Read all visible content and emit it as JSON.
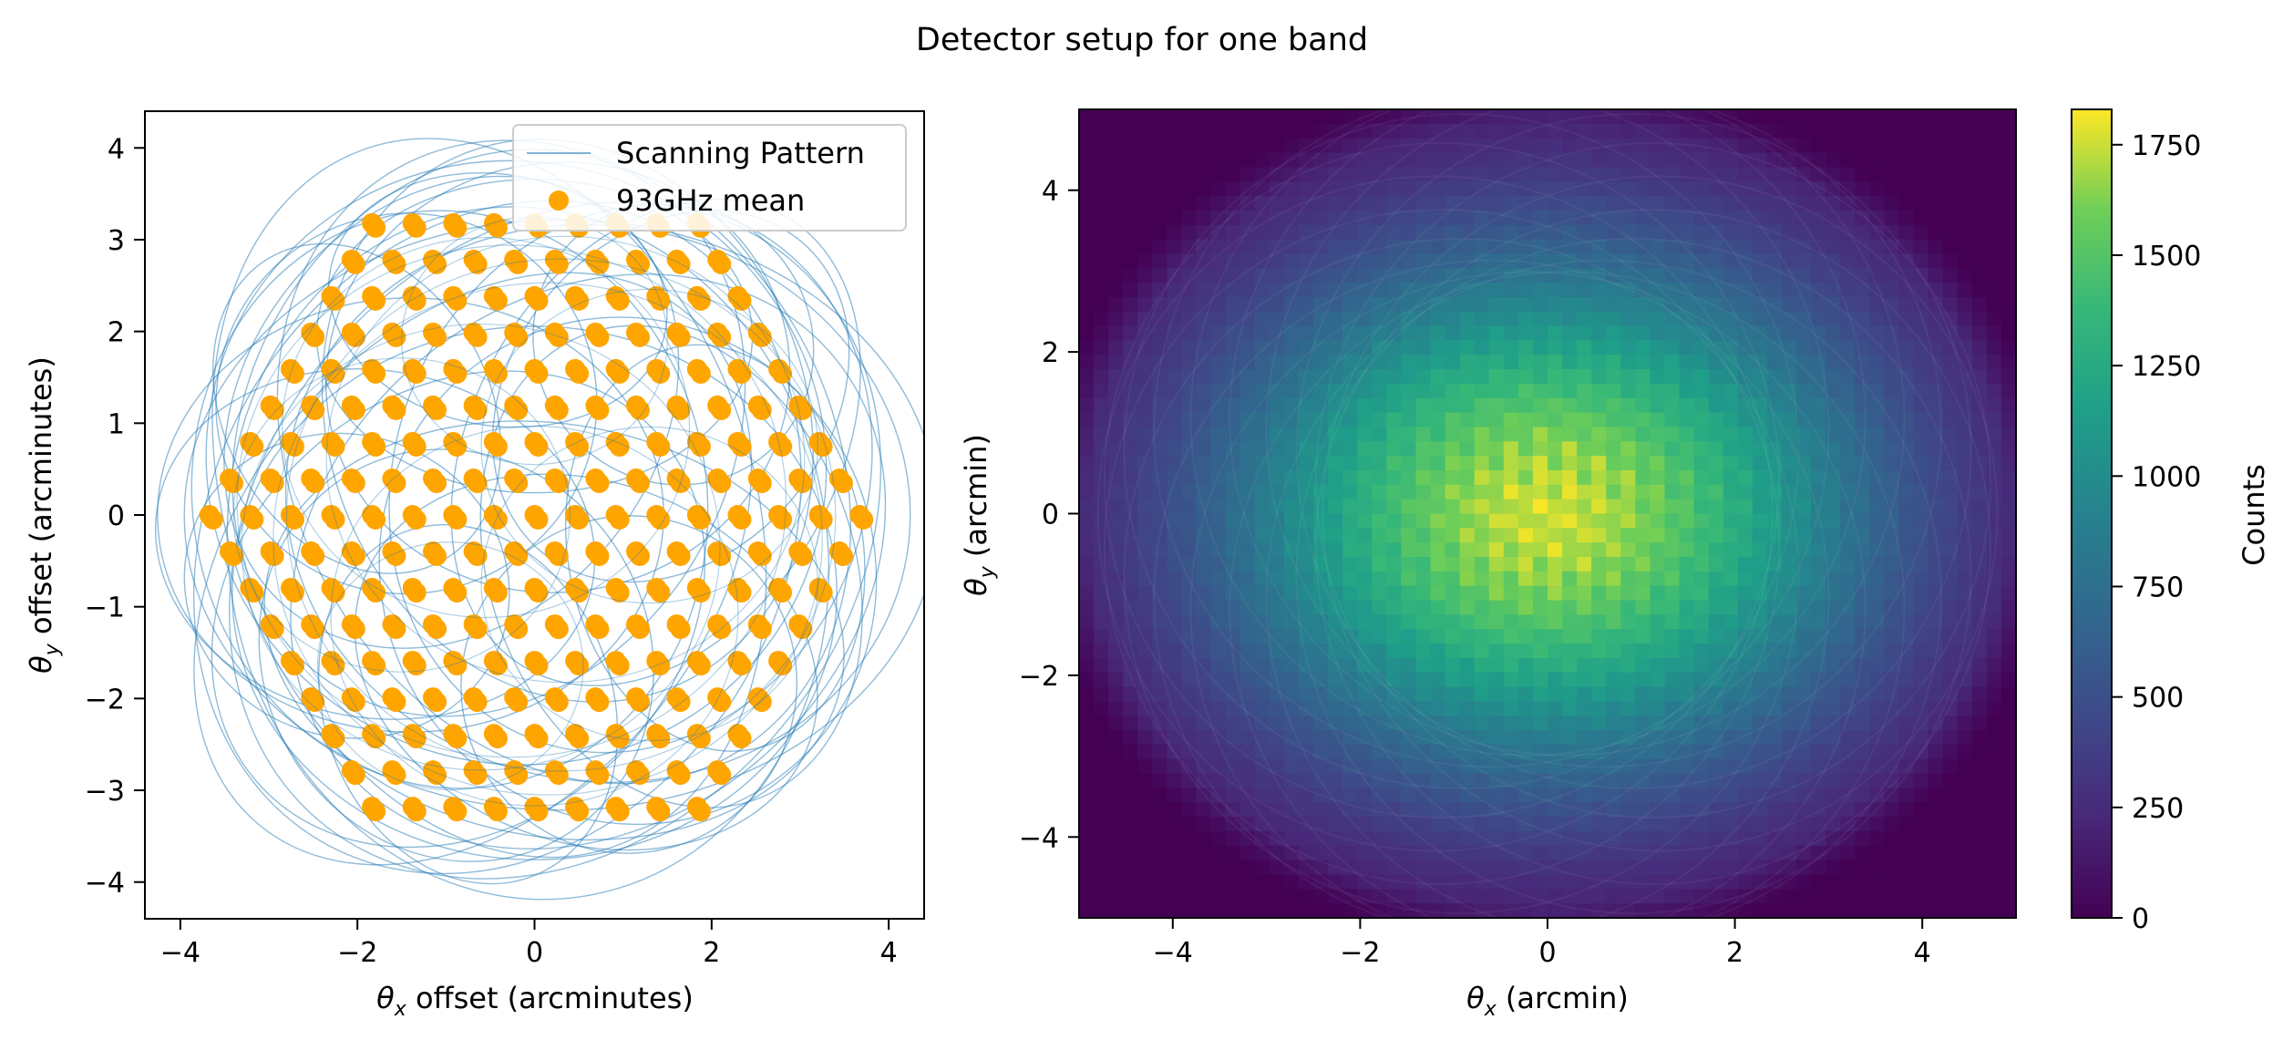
{
  "suptitle": "Detector setup for one band",
  "chart_data": [
    {
      "type": "scatter",
      "xlabel": "θx offset (arcminutes)",
      "ylabel": "θy offset (arcminutes)",
      "xlim": [
        -4.4,
        4.4
      ],
      "ylim": [
        -4.4,
        4.4
      ],
      "xticks": [
        -4,
        -2,
        0,
        2,
        4
      ],
      "yticks": [
        -4,
        -3,
        -2,
        -1,
        0,
        1,
        2,
        3,
        4
      ],
      "grid": false,
      "legend_position": "top-right",
      "series": [
        {
          "name": "Scanning Pattern",
          "kind": "line",
          "color": "#1f77b4",
          "pattern": "rose",
          "radius": 4.0,
          "center_radius_range": [
            0.3,
            2.5
          ],
          "loop_count": 36
        },
        {
          "name": "93GHz mean",
          "kind": "points",
          "color": "#ffa500",
          "layout": "hexagonal",
          "rings": 8,
          "spacing": 0.265,
          "extent_x": [
            -1.85,
            1.85
          ],
          "extent_y": [
            -2.1,
            2.1
          ]
        }
      ]
    },
    {
      "type": "heatmap",
      "xlabel": "θx (arcmin)",
      "ylabel": "θy (arcmin)",
      "xlim": [
        -5,
        5
      ],
      "ylim": [
        -5,
        5
      ],
      "xticks": [
        -4,
        -2,
        0,
        2,
        4
      ],
      "yticks": [
        -4,
        -2,
        0,
        2,
        4
      ],
      "colormap": "viridis",
      "value_range": [
        0,
        1830
      ],
      "peak_location": [
        0,
        0
      ],
      "peak_value": 1750,
      "colorbar": {
        "label": "Counts",
        "ticks": [
          0,
          250,
          500,
          750,
          1000,
          1250,
          1500,
          1750
        ]
      }
    }
  ]
}
